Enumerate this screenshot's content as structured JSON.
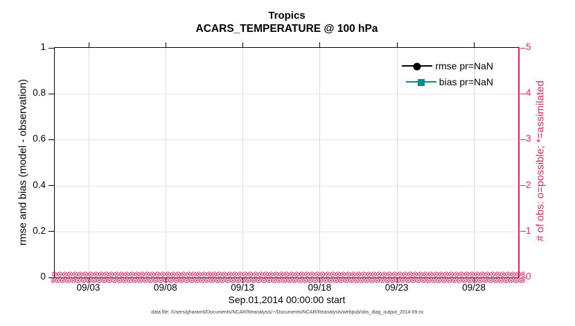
{
  "chart_data": {
    "type": "line",
    "title": "Tropics",
    "subtitle": "ACARS_TEMPERATURE @ 100 hPa",
    "xlabel": "Sep.01,2014 00:00:00 start",
    "x_tick_labels": [
      "09/03",
      "09/08",
      "09/13",
      "09/18",
      "09/23",
      "09/28"
    ],
    "axes": {
      "left": {
        "label": "rmse and bias (model - observation)",
        "range": [
          0,
          1
        ],
        "ticks": [
          0,
          0.2,
          0.4,
          0.6,
          0.8,
          1
        ],
        "tick_labels": [
          "0",
          "0.2",
          "0.4",
          "0.6",
          "0.8",
          "1"
        ],
        "color": "#000000"
      },
      "right": {
        "label": "# of obs: o=possible; *=assimilated",
        "range": [
          0,
          5
        ],
        "ticks": [
          0,
          1,
          2,
          3,
          4,
          5
        ],
        "tick_labels": [
          "0",
          "1",
          "2",
          "3",
          "4",
          "5"
        ],
        "color": "#e02364"
      }
    },
    "grid": {
      "on": true,
      "vertical_color": "#dcdcdc",
      "horizontal_color": "#f8dde8"
    },
    "legend": {
      "position": "top-right-inside",
      "entries": [
        {
          "label": "rmse pr=NaN",
          "color": "#000000",
          "marker": "circle",
          "line": "solid"
        },
        {
          "label": "bias pr=NaN",
          "color": "#008c8c",
          "marker": "square",
          "line": "solid"
        }
      ]
    },
    "series": [
      {
        "name": "rmse",
        "axis": "left",
        "values": "all NaN - no curve plotted"
      },
      {
        "name": "bias",
        "axis": "left",
        "values": "all NaN - no curve plotted"
      },
      {
        "name": "obs possible (o markers)",
        "axis": "right",
        "constant_value": 0
      },
      {
        "name": "obs assimilated (* markers)",
        "axis": "right",
        "constant_value": 0
      }
    ],
    "obs_marker_band": {
      "glyph": "⊗",
      "color": "#e02364",
      "rows": 2,
      "count_per_row": 110
    }
  },
  "footnote": "data file: /Users/gharamti/Documents/NCAR/Reanalysis/~/Documents/NCAR/Reanalysis/webpub/obs_diag_output_2014-09.nc"
}
